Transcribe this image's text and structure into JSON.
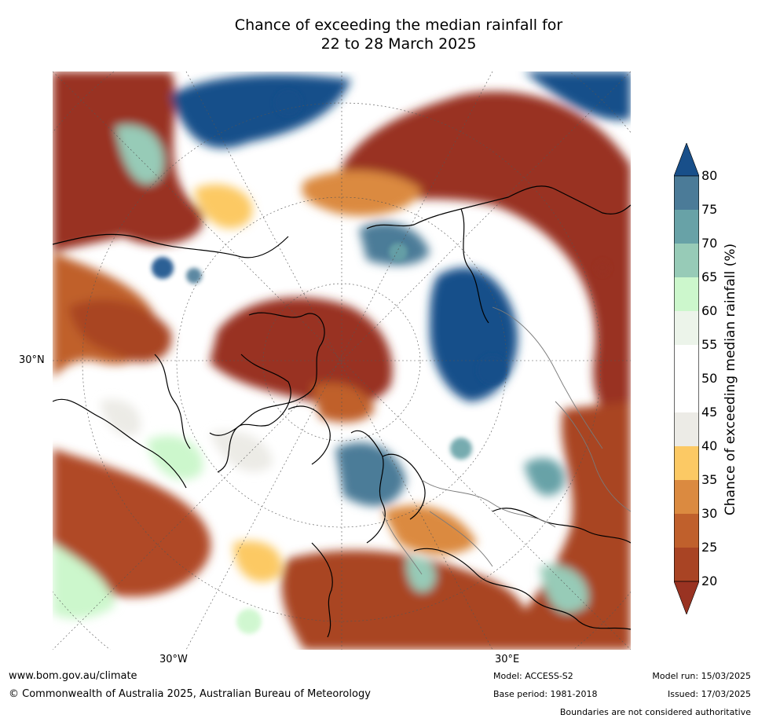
{
  "title": {
    "line1": "Chance of exceeding the median rainfall for",
    "line2": "22 to 28 March 2025"
  },
  "map": {
    "projection": "north-polar-stereographic",
    "lat_labels": [
      "30°N"
    ],
    "lon_labels": [
      "30°W",
      "30°E"
    ]
  },
  "colorbar": {
    "label": "Chance of exceeding median rainfall (%)",
    "extend": "both",
    "ticks": [
      "20",
      "25",
      "30",
      "35",
      "40",
      "45",
      "50",
      "55",
      "60",
      "65",
      "70",
      "75",
      "80"
    ],
    "colors": [
      "#993322",
      "#a94424",
      "#c0602c",
      "#db8a40",
      "#fcc964",
      "#ecebe6",
      "#ffffff",
      "#ffffff",
      "#ecf4ea",
      "#ccf7cc",
      "#97cbb7",
      "#68a2a7",
      "#4b7b98",
      "#184f8a"
    ]
  },
  "footer": {
    "url": "www.bom.gov.au/climate",
    "copyright": "© Commonwealth of Australia 2025, Australian Bureau of Meteorology",
    "model": "Model: ACCESS-S2",
    "base_period": "Base period: 1981-2018",
    "model_run": "Model run: 15/03/2025",
    "issued": "Issued: 17/03/2025",
    "disclaimer": "Boundaries are not considered authoritative"
  }
}
